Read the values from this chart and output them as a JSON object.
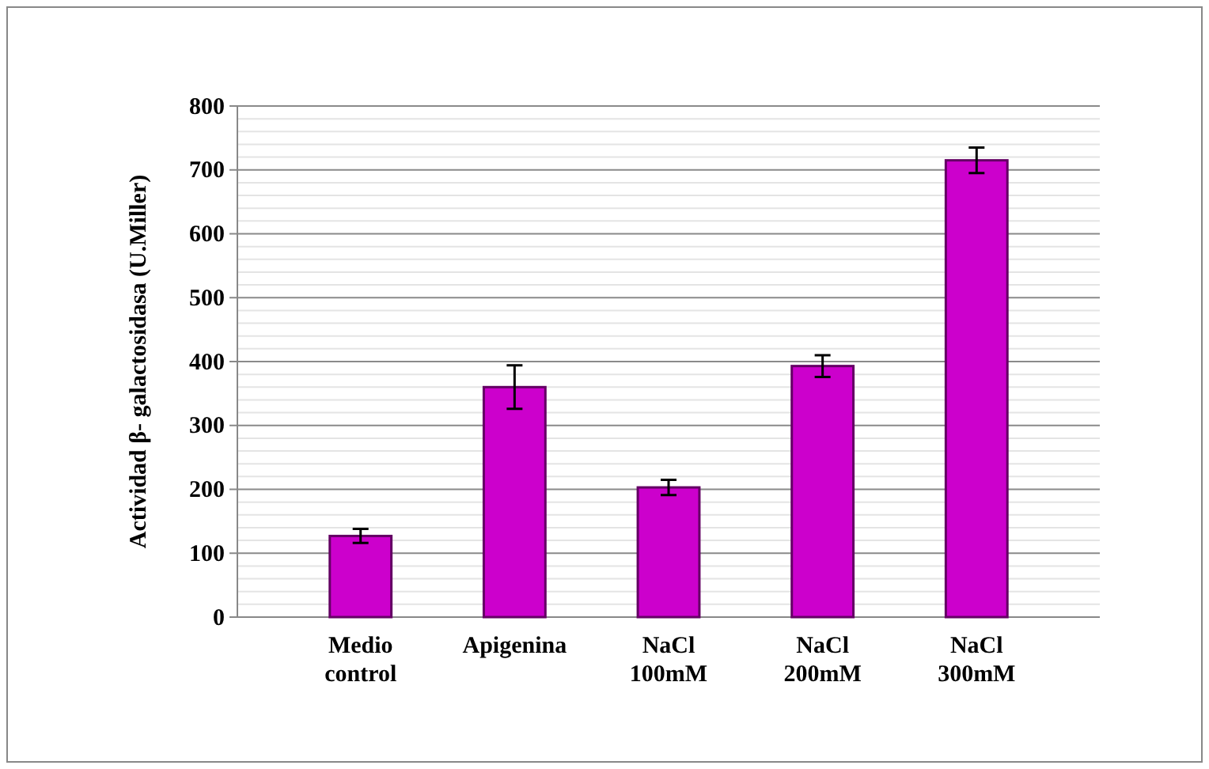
{
  "chart_data": {
    "type": "bar",
    "ylabel": "Actividad β- galactosidasa (U.Miller)",
    "categories": [
      "Medio control",
      "Apigenina",
      "NaCl 100mM",
      "NaCl 200mM",
      "NaCl 300mM"
    ],
    "values": [
      127,
      360,
      203,
      393,
      715
    ],
    "errors": [
      11,
      34,
      12,
      17,
      20
    ],
    "color": "#cc00cc",
    "ylim": [
      0,
      800
    ],
    "yticks": [
      0,
      {
        "value": 20,
        "label": null
      },
      {
        "value": 40,
        "label": null
      },
      {
        "value": 60,
        "label": null
      },
      {
        "value": 80,
        "label": null
      },
      100,
      {
        "value": 120,
        "label": null
      },
      {
        "value": 140,
        "label": null
      },
      {
        "value": 160,
        "label": null
      },
      {
        "value": 180,
        "label": null
      },
      200,
      {
        "value": 220,
        "label": null
      },
      {
        "value": 240,
        "label": null
      },
      {
        "value": 260,
        "label": null
      },
      {
        "value": 280,
        "label": null
      },
      300,
      {
        "value": 320,
        "label": null
      },
      {
        "value": 340,
        "label": null
      },
      {
        "value": 360,
        "label": null
      },
      {
        "value": 380,
        "label": null
      },
      400,
      {
        "value": 420,
        "label": null
      },
      {
        "value": 440,
        "label": null
      },
      {
        "value": 460,
        "label": null
      },
      {
        "value": 480,
        "label": null
      },
      500,
      {
        "value": 520,
        "label": null
      },
      {
        "value": 540,
        "label": null
      },
      {
        "value": 560,
        "label": null
      },
      {
        "value": 580,
        "label": null
      },
      600,
      {
        "value": 620,
        "label": null
      },
      {
        "value": 640,
        "label": null
      },
      {
        "value": 660,
        "label": null
      },
      {
        "value": 680,
        "label": null
      },
      700,
      {
        "value": 720,
        "label": null
      },
      {
        "value": 740,
        "label": null
      },
      {
        "value": 760,
        "label": null
      },
      {
        "value": 780,
        "label": null
      },
      800
    ],
    "grid": true
  }
}
